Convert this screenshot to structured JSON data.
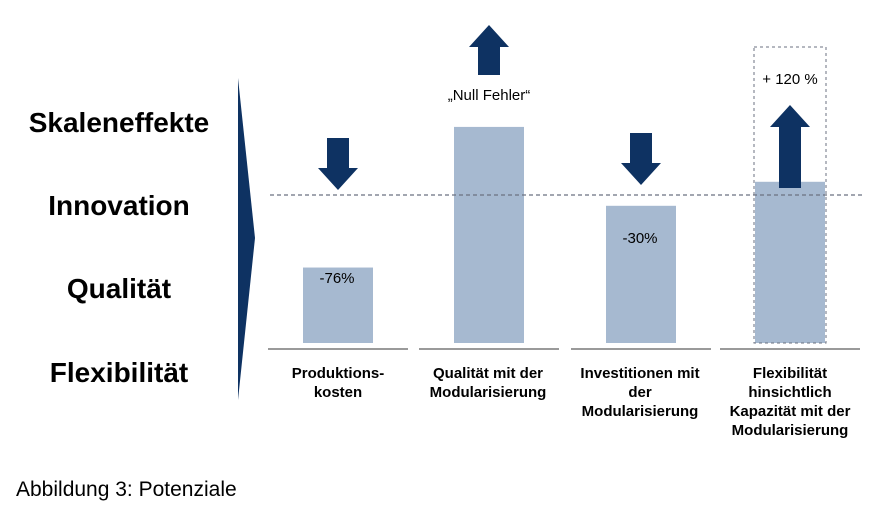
{
  "chart_data": {
    "type": "bar",
    "title": "",
    "xlabel": "",
    "ylabel": "",
    "y_levels": [
      "Skaleneffekte",
      "Innovation",
      "Qualität",
      "Flexibilität"
    ],
    "categories": [
      "Produktions-\nkosten",
      "Qualität mit der\nModularisierung",
      "Investitionen mit\nder\nModularisierung",
      "Flexibilität\nhinsichtlich\nKapazität mit der\nModularisierung"
    ],
    "values": [
      0.22,
      0.63,
      0.4,
      0.47
    ],
    "value_labels": [
      "-76%",
      "„Null Fehler“",
      "-30%",
      "+ 120 %"
    ],
    "arrows": [
      "down",
      "up",
      "down",
      "up"
    ],
    "reference_line": {
      "style": "dashed",
      "level": "Innovation"
    },
    "grid": false,
    "legend": "none"
  },
  "caption": "Abbildung 3: Potenziale",
  "colors": {
    "bar": "#a6b9d0",
    "arrow": "#0e3262",
    "triangle": "#0e3262",
    "baseline": "#9a9a9a",
    "dashed_line": "#6b7280"
  }
}
